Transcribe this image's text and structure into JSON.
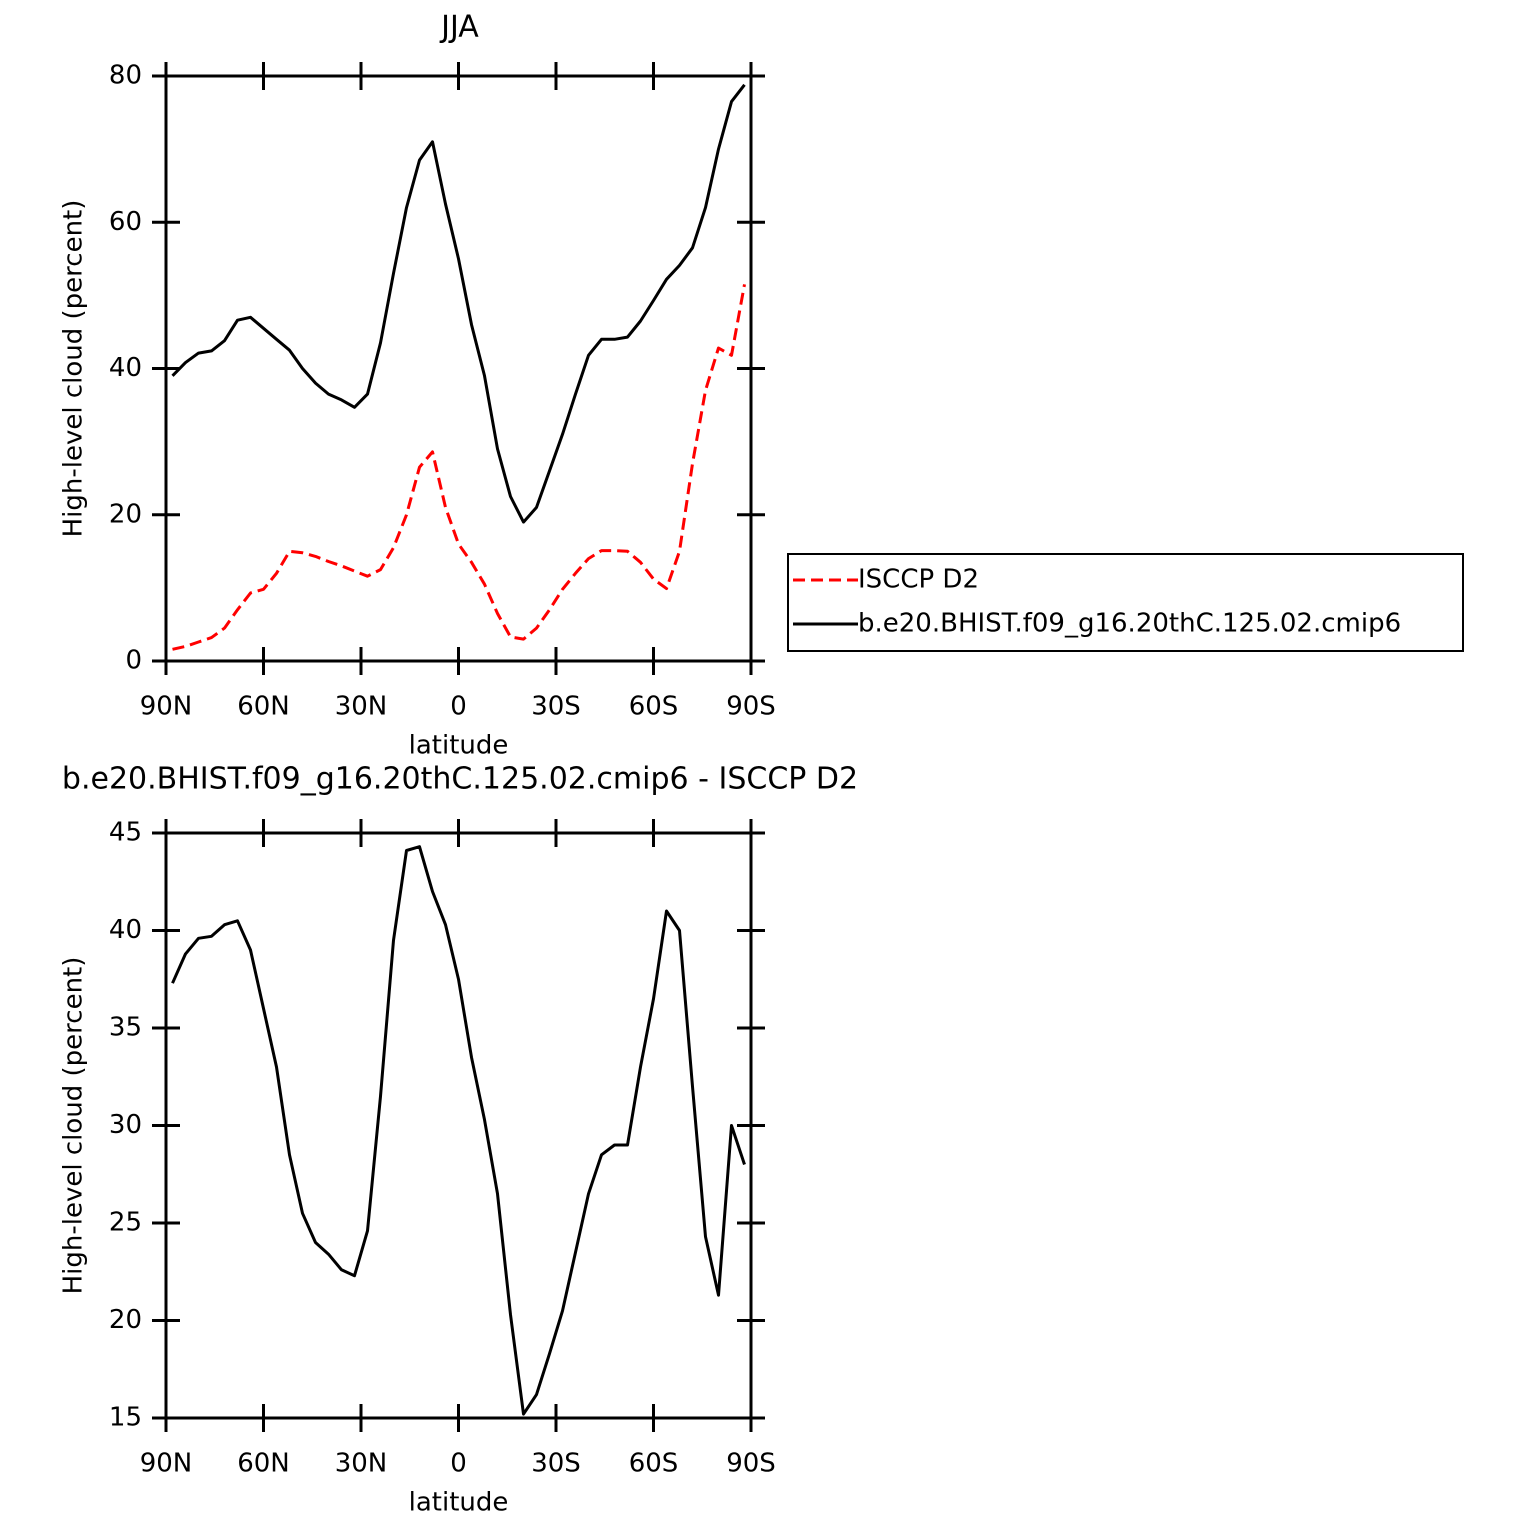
{
  "chart_data": [
    {
      "type": "line",
      "title": "JJA",
      "xlabel": "latitude",
      "ylabel": "High-level cloud (percent)",
      "x": [
        88,
        84,
        80,
        76,
        72,
        68,
        64,
        60,
        56,
        52,
        48,
        44,
        40,
        36,
        32,
        28,
        24,
        20,
        16,
        12,
        8,
        4,
        0,
        -4,
        -8,
        -12,
        -16,
        -20,
        -24,
        -28,
        -32,
        -36,
        -40,
        -44,
        -48,
        -52,
        -56,
        -60,
        -64,
        -68,
        -72,
        -76,
        -80,
        -84,
        -88
      ],
      "xlim": [
        90,
        -90
      ],
      "xticks": [
        {
          "value": 90,
          "label": "90N"
        },
        {
          "value": 60,
          "label": "60N"
        },
        {
          "value": 30,
          "label": "30N"
        },
        0,
        {
          "value": -30,
          "label": "30S"
        },
        {
          "value": -60,
          "label": "60S"
        },
        {
          "value": -90,
          "label": "90S"
        }
      ],
      "ylim": [
        0,
        80
      ],
      "yticks": [
        0,
        20,
        40,
        60,
        80
      ],
      "legend": "outside-right",
      "series": [
        {
          "name": "ISCCP D2",
          "color": "#ff0000",
          "dash": true,
          "values": [
            1.6,
            2.0,
            2.6,
            3.2,
            4.5,
            7.0,
            9.3,
            9.8,
            12.0,
            15.0,
            14.8,
            14.3,
            13.6,
            13.0,
            12.3,
            11.6,
            12.5,
            15.5,
            20.0,
            26.5,
            28.6,
            21.0,
            16.0,
            13.5,
            10.5,
            6.5,
            3.3,
            3.0,
            4.5,
            7.0,
            9.8,
            12.0,
            14.0,
            15.1,
            15.1,
            15.0,
            13.5,
            11.2,
            9.9,
            15.0,
            27.0,
            37.0,
            42.8,
            41.8,
            51.5
          ]
        },
        {
          "name": "b.e20.BHIST.f09_g16.20thC.125.02.cmip6",
          "color": "#000000",
          "dash": false,
          "values": [
            39.0,
            40.8,
            42.1,
            42.4,
            43.8,
            46.6,
            47.0,
            45.5,
            44.0,
            42.5,
            40.0,
            38.0,
            36.5,
            35.7,
            34.7,
            36.5,
            43.5,
            53.0,
            62.0,
            68.5,
            71.0,
            62.5,
            55.0,
            46.0,
            39.0,
            29.0,
            22.5,
            19.0,
            21.0,
            26.0,
            31.0,
            36.5,
            41.8,
            44.0,
            44.0,
            44.3,
            46.5,
            49.3,
            52.2,
            54.1,
            56.5,
            62.0,
            70.0,
            76.5,
            78.8
          ]
        }
      ]
    },
    {
      "type": "line",
      "title": "b.e20.BHIST.f09_g16.20thC.125.02.cmip6 - ISCCP D2",
      "xlabel": "latitude",
      "ylabel": "High-level cloud (percent)",
      "x": [
        88,
        84,
        80,
        76,
        72,
        68,
        64,
        60,
        56,
        52,
        48,
        44,
        40,
        36,
        32,
        28,
        24,
        20,
        16,
        12,
        8,
        4,
        0,
        -4,
        -8,
        -12,
        -16,
        -20,
        -24,
        -28,
        -32,
        -36,
        -40,
        -44,
        -48,
        -52,
        -56,
        -60,
        -64,
        -68,
        -72,
        -76,
        -80,
        -84,
        -88
      ],
      "xlim": [
        90,
        -90
      ],
      "xticks": [
        {
          "value": 90,
          "label": "90N"
        },
        {
          "value": 60,
          "label": "60N"
        },
        {
          "value": 30,
          "label": "30N"
        },
        0,
        {
          "value": -30,
          "label": "30S"
        },
        {
          "value": -60,
          "label": "60S"
        },
        {
          "value": -90,
          "label": "90S"
        }
      ],
      "ylim": [
        15,
        45
      ],
      "yticks": [
        15,
        20,
        25,
        30,
        35,
        40,
        45
      ],
      "series": [
        {
          "color": "#000000",
          "dash": false,
          "values": [
            37.3,
            38.8,
            39.6,
            39.7,
            40.3,
            40.5,
            39.0,
            36.0,
            33.0,
            28.5,
            25.5,
            24.0,
            23.4,
            22.6,
            22.3,
            24.6,
            31.5,
            39.5,
            44.1,
            44.3,
            42.0,
            40.3,
            37.5,
            33.5,
            30.3,
            26.5,
            20.3,
            15.2,
            16.2,
            18.3,
            20.5,
            23.5,
            26.5,
            28.5,
            29.0,
            29.0,
            33.0,
            36.5,
            41.0,
            40.0,
            32.0,
            24.3,
            21.3,
            30.0,
            28.0
          ]
        }
      ]
    }
  ]
}
